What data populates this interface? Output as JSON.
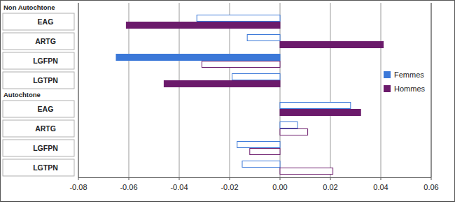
{
  "chart_data": {
    "type": "bar",
    "orientation": "horizontal",
    "categories": [
      "EAG",
      "ARTG",
      "LGFPN",
      "LGTPN",
      "EAG",
      "ARTG",
      "LGFPN",
      "LGTPN"
    ],
    "groups": [
      {
        "name": "Non Autochtone",
        "size": 4
      },
      {
        "name": "Autochtone",
        "size": 4
      }
    ],
    "series": [
      {
        "name": "Femmes",
        "color": "#3b78d8",
        "colors": [
          "#ffffff",
          "#ffffff",
          "#3b78d8",
          "#ffffff",
          "#ffffff",
          "#ffffff",
          "#ffffff",
          "#ffffff"
        ],
        "values": [
          -0.033,
          -0.013,
          -0.065,
          -0.019,
          0.028,
          0.007,
          -0.017,
          -0.015
        ]
      },
      {
        "name": "Hommes",
        "color": "#6b1a6b",
        "colors": [
          "#6b1a6b",
          "#6b1a6b",
          "#ffffff",
          "#6b1a6b",
          "#6b1a6b",
          "#ffffff",
          "#ffffff",
          "#ffffff"
        ],
        "values": [
          -0.061,
          0.041,
          -0.031,
          -0.046,
          0.032,
          0.011,
          -0.012,
          0.021
        ]
      }
    ],
    "xlim": [
      -0.08,
      0.06
    ],
    "xticks": [
      -0.08,
      -0.06,
      -0.04,
      -0.02,
      {
        "value": 0,
        "label": "0.00"
      },
      0.02,
      0.04,
      0.06
    ],
    "grid": true,
    "legend": "right",
    "data_labels": false
  }
}
